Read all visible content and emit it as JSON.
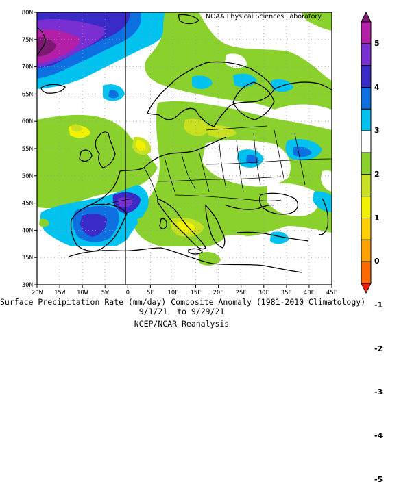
{
  "credit": "NOAA Physical Sciences Laboratory",
  "caption": {
    "line1": "Surface Precipitation Rate (mm/day) Composite Anomaly (1981-2010 Climatology)",
    "line2": "9/1/21  to 9/29/21",
    "line3": "NCEP/NCAR Reanalysis"
  },
  "axes": {
    "lat_labels": [
      "80N",
      "75N",
      "70N",
      "65N",
      "60N",
      "55N",
      "50N",
      "45N",
      "40N",
      "35N",
      "30N"
    ],
    "lon_labels": [
      "20W",
      "15W",
      "10W",
      "5W",
      "0",
      "5E",
      "10E",
      "15E",
      "20E",
      "25E",
      "30E",
      "35E",
      "40E",
      "45E"
    ]
  },
  "colorbar": {
    "labels": [
      "5",
      "4",
      "3",
      "2",
      "1",
      "0",
      "-1",
      "-2",
      "-3",
      "-4",
      "-5"
    ],
    "colors": [
      "#7a1872",
      "#b41fa8",
      "#7a2fd3",
      "#3a2bc9",
      "#0d6fe0",
      "#00c2ee",
      "#ffffff",
      "#8bd12d",
      "#c8e020",
      "#f2f200",
      "#ffd000",
      "#ffa200",
      "#ff6a00",
      "#ff1a00"
    ]
  }
}
